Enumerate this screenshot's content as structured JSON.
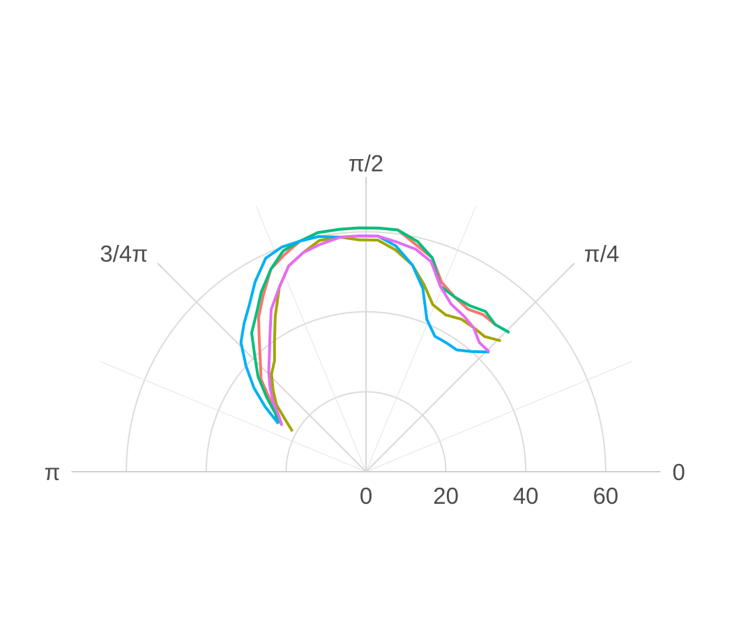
{
  "chart_data": {
    "type": "line",
    "coordinate_system": "polar",
    "theta_range": [
      0,
      3.14159
    ],
    "r_range": [
      0,
      72
    ],
    "r_ticks": [
      0,
      20,
      40,
      60
    ],
    "theta_ticks": [
      {
        "value": 0,
        "label": "0"
      },
      {
        "value": 0.7854,
        "label": "π/4"
      },
      {
        "value": 1.5708,
        "label": "π/2"
      },
      {
        "value": 2.3562,
        "label": "3/4π"
      },
      {
        "value": 3.1416,
        "label": "π"
      }
    ],
    "theta_minor_gridlines": [
      0.3927,
      1.1781,
      1.9635,
      2.7489
    ],
    "grid": true,
    "legend": "none",
    "series": [
      {
        "color": "#F8766D",
        "points": [
          [
            0.77,
            50
          ],
          [
            0.85,
            49
          ],
          [
            0.93,
            49
          ],
          [
            1.01,
            48
          ],
          [
            1.1,
            49
          ],
          [
            1.19,
            51
          ],
          [
            1.27,
            56
          ],
          [
            1.35,
            58
          ],
          [
            1.44,
            61
          ],
          [
            1.52,
            61
          ],
          [
            1.6,
            61
          ],
          [
            1.68,
            61
          ],
          [
            1.77,
            61
          ],
          [
            1.85,
            60
          ],
          [
            1.93,
            58
          ],
          [
            2.01,
            56
          ],
          [
            2.1,
            51
          ],
          [
            2.18,
            47
          ],
          [
            2.26,
            42
          ],
          [
            2.34,
            38
          ],
          [
            2.42,
            35
          ],
          [
            2.5,
            30
          ],
          [
            2.57,
            26
          ],
          [
            2.64,
            24
          ]
        ]
      },
      {
        "color": "#A3A500",
        "points": [
          [
            0.77,
            47
          ],
          [
            0.85,
            45
          ],
          [
            0.93,
            45
          ],
          [
            1.01,
            45
          ],
          [
            1.1,
            44
          ],
          [
            1.19,
            45
          ],
          [
            1.27,
            49
          ],
          [
            1.35,
            53
          ],
          [
            1.44,
            56
          ],
          [
            1.52,
            58
          ],
          [
            1.6,
            58
          ],
          [
            1.68,
            59
          ],
          [
            1.77,
            59
          ],
          [
            1.85,
            57
          ],
          [
            1.93,
            55
          ],
          [
            2.01,
            51
          ],
          [
            2.1,
            45
          ],
          [
            2.18,
            40
          ],
          [
            2.26,
            36
          ],
          [
            2.34,
            34
          ],
          [
            2.42,
            31
          ],
          [
            2.5,
            28
          ],
          [
            2.57,
            24
          ],
          [
            2.64,
            21
          ]
        ]
      },
      {
        "color": "#00BF7D",
        "points": [
          [
            0.77,
            50
          ],
          [
            0.85,
            49
          ],
          [
            0.93,
            50
          ],
          [
            1.01,
            49
          ],
          [
            1.1,
            49
          ],
          [
            1.19,
            50
          ],
          [
            1.27,
            56
          ],
          [
            1.35,
            59
          ],
          [
            1.44,
            61
          ],
          [
            1.52,
            61
          ],
          [
            1.6,
            61
          ],
          [
            1.68,
            61
          ],
          [
            1.77,
            61
          ],
          [
            1.85,
            60
          ],
          [
            1.93,
            59
          ],
          [
            2.01,
            56
          ],
          [
            2.1,
            52
          ],
          [
            2.18,
            48
          ],
          [
            2.26,
            45
          ],
          [
            2.34,
            40
          ],
          [
            2.42,
            36
          ],
          [
            2.5,
            31
          ],
          [
            2.57,
            27
          ],
          [
            2.64,
            25
          ]
        ]
      },
      {
        "color": "#00B0F6",
        "points": [
          [
            0.77,
            43
          ],
          [
            0.85,
            40
          ],
          [
            0.93,
            38
          ],
          [
            1.01,
            38
          ],
          [
            1.1,
            38
          ],
          [
            1.19,
            41
          ],
          [
            1.27,
            48
          ],
          [
            1.35,
            53
          ],
          [
            1.44,
            57
          ],
          [
            1.52,
            59
          ],
          [
            1.6,
            59
          ],
          [
            1.68,
            59
          ],
          [
            1.77,
            60
          ],
          [
            1.85,
            60
          ],
          [
            1.93,
            60
          ],
          [
            2.01,
            59
          ],
          [
            2.1,
            55
          ],
          [
            2.18,
            51
          ],
          [
            2.26,
            48
          ],
          [
            2.34,
            45
          ],
          [
            2.42,
            40
          ],
          [
            2.5,
            35
          ],
          [
            2.57,
            30
          ],
          [
            2.64,
            25
          ]
        ]
      },
      {
        "color": "#E76BF3",
        "points": [
          [
            0.77,
            43
          ],
          [
            0.85,
            43
          ],
          [
            0.93,
            45
          ],
          [
            1.01,
            46
          ],
          [
            1.1,
            47
          ],
          [
            1.19,
            50
          ],
          [
            1.27,
            55
          ],
          [
            1.35,
            57
          ],
          [
            1.44,
            58
          ],
          [
            1.52,
            59
          ],
          [
            1.6,
            59
          ],
          [
            1.68,
            59
          ],
          [
            1.77,
            58
          ],
          [
            1.85,
            57
          ],
          [
            1.93,
            55
          ],
          [
            2.01,
            51
          ],
          [
            2.1,
            47
          ],
          [
            2.18,
            42
          ],
          [
            2.26,
            38
          ],
          [
            2.34,
            35
          ],
          [
            2.42,
            32
          ],
          [
            2.5,
            29
          ],
          [
            2.57,
            26
          ],
          [
            2.64,
            24
          ]
        ]
      }
    ]
  }
}
